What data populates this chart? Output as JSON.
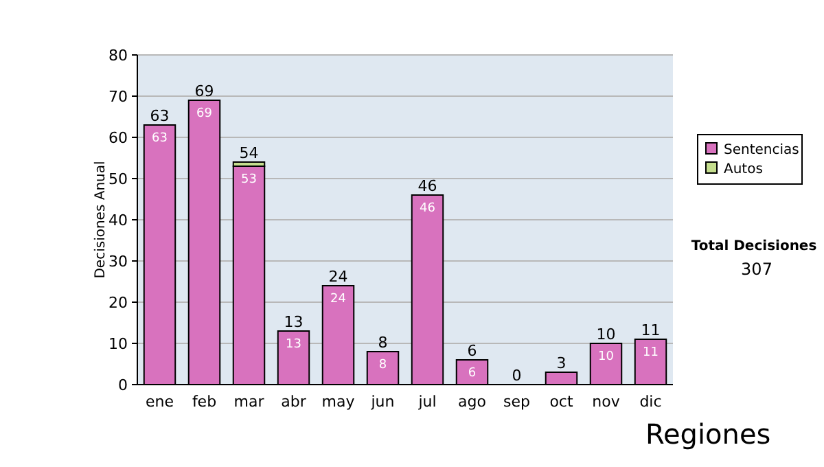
{
  "chart_data": {
    "type": "bar",
    "stacked": true,
    "ylabel": "Decisiones Anual",
    "categories": [
      "ene",
      "feb",
      "mar",
      "abr",
      "may",
      "jun",
      "jul",
      "ago",
      "sep",
      "oct",
      "nov",
      "dic"
    ],
    "series": [
      {
        "name": "Sentencias",
        "color": "#d872be",
        "values": [
          63,
          69,
          53,
          13,
          24,
          8,
          46,
          6,
          0,
          3,
          10,
          11
        ],
        "value_labels": [
          "63",
          "69",
          "53",
          "13",
          "24",
          "8",
          "46",
          "6",
          null,
          null,
          "10",
          "11"
        ]
      },
      {
        "name": "Autos",
        "color": "#c5de8e",
        "values": [
          0,
          0,
          1,
          0,
          0,
          0,
          0,
          0,
          0,
          0,
          0,
          0
        ]
      }
    ],
    "totals": [
      "63",
      "69",
      "54",
      "13",
      "24",
      "8",
      "46",
      "6",
      "0",
      "3",
      "10",
      "11"
    ],
    "ylim": [
      0,
      80
    ],
    "yticks": [
      0,
      10,
      20,
      30,
      40,
      50,
      60,
      70,
      80
    ],
    "grid": "y",
    "legend": "right",
    "annotations": [
      "Total Decisiones",
      "307",
      "Regiones"
    ]
  }
}
